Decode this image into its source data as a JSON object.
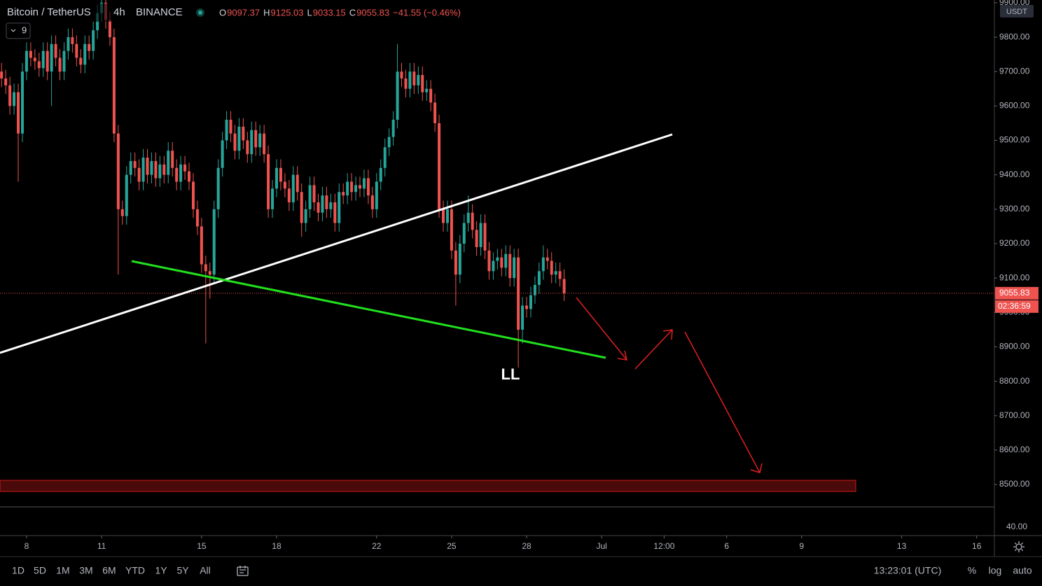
{
  "header": {
    "symbol": "Bitcoin / TetherUS",
    "interval": "4h",
    "exchange": "BINANCE",
    "ohlc_keys": [
      "O",
      "H",
      "L",
      "C"
    ],
    "change": "−41.55 (−0.46%)",
    "indicator": "9"
  },
  "chart_data": {
    "type": "candlestick",
    "currency": "USDT",
    "up_color": "#26a69a",
    "down_color": "#ef5350",
    "grid": false,
    "xlim": [
      142.5,
      1097
    ],
    "ylim": [
      8435,
      9908
    ],
    "yticks": [
      {
        "value": 8500,
        "label": "8500.00"
      },
      {
        "value": 8600,
        "label": "8600.00"
      },
      {
        "value": 8700,
        "label": "8700.00"
      },
      {
        "value": 8800,
        "label": "8800.00"
      },
      {
        "value": 8900,
        "label": "8900.00"
      },
      {
        "value": 9000,
        "label": "9000.00"
      },
      {
        "value": 9100,
        "label": "9100.00"
      },
      {
        "value": 9200,
        "label": "9200.00"
      },
      {
        "value": 9300,
        "label": "9300.00"
      },
      {
        "value": 9400,
        "label": "9400.00"
      },
      {
        "value": 9500,
        "label": "9500.00"
      },
      {
        "value": 9600,
        "label": "9600.00"
      },
      {
        "value": 9700,
        "label": "9700.00"
      },
      {
        "value": 9800,
        "label": "9800.00"
      },
      {
        "value": 9900,
        "label": "9900.00"
      }
    ],
    "xticks": [
      {
        "value": 168,
        "label": "8"
      },
      {
        "value": 240,
        "label": "11"
      },
      {
        "value": 336,
        "label": "15"
      },
      {
        "value": 408,
        "label": "18"
      },
      {
        "value": 504,
        "label": "22"
      },
      {
        "value": 576,
        "label": "25"
      },
      {
        "value": 648,
        "label": "28"
      },
      {
        "value": 720,
        "label": "Jul"
      },
      {
        "value": 780,
        "label": "12:00"
      },
      {
        "value": 840,
        "label": "6"
      },
      {
        "value": 912,
        "label": "9"
      },
      {
        "value": 1008,
        "label": "13"
      },
      {
        "value": 1080,
        "label": "16"
      }
    ],
    "countdown": "02:36:59",
    "annotation": "LL",
    "volume_axis_label": "40.00",
    "candles": [
      [
        144,
        9700,
        9725,
        9655,
        9680
      ],
      [
        148,
        9680,
        9705,
        9635,
        9660
      ],
      [
        152,
        9660,
        9685,
        9575,
        9600
      ],
      [
        156,
        9600,
        9665,
        9575,
        9640
      ],
      [
        160,
        9640,
        9665,
        9380,
        9520
      ],
      [
        164,
        9520,
        9725,
        9495,
        9700
      ],
      [
        168,
        9700,
        9785,
        9675,
        9760
      ],
      [
        172,
        9760,
        9785,
        9715,
        9740
      ],
      [
        176,
        9740,
        9765,
        9705,
        9730
      ],
      [
        180,
        9730,
        9755,
        9685,
        9710
      ],
      [
        184,
        9710,
        9785,
        9685,
        9760
      ],
      [
        188,
        9760,
        9785,
        9675,
        9700
      ],
      [
        192,
        9700,
        9805,
        9600,
        9780
      ],
      [
        196,
        9780,
        9805,
        9715,
        9740
      ],
      [
        200,
        9740,
        9765,
        9675,
        9700
      ],
      [
        204,
        9700,
        9785,
        9675,
        9760
      ],
      [
        208,
        9760,
        9825,
        9735,
        9800
      ],
      [
        212,
        9800,
        9825,
        9755,
        9780
      ],
      [
        216,
        9780,
        9805,
        9715,
        9740
      ],
      [
        220,
        9740,
        9765,
        9695,
        9720
      ],
      [
        224,
        9720,
        9805,
        9695,
        9780
      ],
      [
        228,
        9780,
        9805,
        9735,
        9760
      ],
      [
        232,
        9760,
        9845,
        9735,
        9820
      ],
      [
        236,
        9820,
        9895,
        9795,
        9870
      ],
      [
        240,
        9870,
        9930,
        9845,
        9900
      ],
      [
        244,
        9900,
        9960,
        9825,
        9850
      ],
      [
        248,
        9850,
        9875,
        9775,
        9800
      ],
      [
        252,
        9800,
        9825,
        9495,
        9520
      ],
      [
        256,
        9520,
        9545,
        9110,
        9300
      ],
      [
        260,
        9300,
        9325,
        9255,
        9280
      ],
      [
        264,
        9280,
        9425,
        9255,
        9400
      ],
      [
        268,
        9400,
        9465,
        9375,
        9440
      ],
      [
        272,
        9440,
        9465,
        9395,
        9420
      ],
      [
        276,
        9420,
        9445,
        9355,
        9380
      ],
      [
        280,
        9380,
        9475,
        9355,
        9450
      ],
      [
        284,
        9450,
        9475,
        9375,
        9400
      ],
      [
        288,
        9400,
        9465,
        9375,
        9440
      ],
      [
        292,
        9440,
        9465,
        9365,
        9390
      ],
      [
        296,
        9390,
        9455,
        9365,
        9430
      ],
      [
        300,
        9430,
        9455,
        9375,
        9400
      ],
      [
        304,
        9400,
        9495,
        9375,
        9470
      ],
      [
        308,
        9470,
        9495,
        9395,
        9420
      ],
      [
        312,
        9420,
        9445,
        9355,
        9380
      ],
      [
        316,
        9380,
        9455,
        9355,
        9430
      ],
      [
        320,
        9430,
        9455,
        9385,
        9410
      ],
      [
        324,
        9410,
        9435,
        9355,
        9380
      ],
      [
        328,
        9380,
        9405,
        9275,
        9300
      ],
      [
        332,
        9300,
        9325,
        9225,
        9250
      ],
      [
        336,
        9250,
        9275,
        9115,
        9140
      ],
      [
        340,
        9140,
        9165,
        8910,
        9120
      ],
      [
        344,
        9120,
        9145,
        9040,
        9110
      ],
      [
        348,
        9110,
        9325,
        9085,
        9300
      ],
      [
        352,
        9300,
        9445,
        9275,
        9420
      ],
      [
        356,
        9420,
        9525,
        9395,
        9500
      ],
      [
        360,
        9500,
        9585,
        9475,
        9560
      ],
      [
        364,
        9560,
        9585,
        9495,
        9520
      ],
      [
        368,
        9520,
        9545,
        9445,
        9470
      ],
      [
        372,
        9470,
        9565,
        9445,
        9540
      ],
      [
        376,
        9540,
        9565,
        9475,
        9500
      ],
      [
        380,
        9500,
        9525,
        9435,
        9460
      ],
      [
        384,
        9460,
        9555,
        9435,
        9530
      ],
      [
        388,
        9530,
        9555,
        9455,
        9480
      ],
      [
        392,
        9480,
        9545,
        9455,
        9520
      ],
      [
        396,
        9520,
        9545,
        9435,
        9460
      ],
      [
        400,
        9460,
        9485,
        9275,
        9300
      ],
      [
        404,
        9300,
        9385,
        9275,
        9360
      ],
      [
        408,
        9360,
        9445,
        9335,
        9420
      ],
      [
        412,
        9420,
        9445,
        9355,
        9380
      ],
      [
        416,
        9380,
        9405,
        9335,
        9360
      ],
      [
        420,
        9360,
        9385,
        9295,
        9320
      ],
      [
        424,
        9320,
        9425,
        9295,
        9400
      ],
      [
        428,
        9400,
        9425,
        9325,
        9350
      ],
      [
        432,
        9350,
        9375,
        9220,
        9260
      ],
      [
        436,
        9260,
        9325,
        9235,
        9300
      ],
      [
        440,
        9300,
        9395,
        9275,
        9370
      ],
      [
        444,
        9370,
        9395,
        9295,
        9320
      ],
      [
        448,
        9320,
        9345,
        9265,
        9290
      ],
      [
        452,
        9290,
        9365,
        9265,
        9340
      ],
      [
        456,
        9340,
        9365,
        9275,
        9300
      ],
      [
        460,
        9300,
        9345,
        9275,
        9320
      ],
      [
        464,
        9320,
        9345,
        9235,
        9260
      ],
      [
        468,
        9260,
        9375,
        9235,
        9350
      ],
      [
        472,
        9350,
        9375,
        9315,
        9340
      ],
      [
        476,
        9340,
        9405,
        9315,
        9380
      ],
      [
        480,
        9380,
        9405,
        9325,
        9350
      ],
      [
        484,
        9350,
        9395,
        9325,
        9370
      ],
      [
        488,
        9370,
        9395,
        9335,
        9360
      ],
      [
        492,
        9360,
        9415,
        9335,
        9390
      ],
      [
        496,
        9390,
        9415,
        9315,
        9340
      ],
      [
        500,
        9340,
        9365,
        9275,
        9300
      ],
      [
        504,
        9300,
        9405,
        9275,
        9380
      ],
      [
        508,
        9380,
        9445,
        9355,
        9420
      ],
      [
        512,
        9420,
        9505,
        9395,
        9480
      ],
      [
        516,
        9480,
        9535,
        9455,
        9510
      ],
      [
        520,
        9510,
        9585,
        9485,
        9560
      ],
      [
        524,
        9560,
        9780,
        9535,
        9700
      ],
      [
        528,
        9700,
        9725,
        9655,
        9680
      ],
      [
        532,
        9680,
        9705,
        9625,
        9650
      ],
      [
        536,
        9650,
        9725,
        9625,
        9700
      ],
      [
        540,
        9700,
        9725,
        9635,
        9660
      ],
      [
        544,
        9660,
        9715,
        9635,
        9690
      ],
      [
        548,
        9690,
        9715,
        9615,
        9640
      ],
      [
        552,
        9640,
        9675,
        9615,
        9650
      ],
      [
        556,
        9650,
        9675,
        9585,
        9610
      ],
      [
        560,
        9610,
        9635,
        9525,
        9550
      ],
      [
        564,
        9550,
        9575,
        9275,
        9300
      ],
      [
        568,
        9300,
        9325,
        9235,
        9260
      ],
      [
        572,
        9260,
        9325,
        9235,
        9300
      ],
      [
        576,
        9300,
        9325,
        9155,
        9180
      ],
      [
        580,
        9180,
        9205,
        9020,
        9110
      ],
      [
        584,
        9110,
        9225,
        9085,
        9200
      ],
      [
        588,
        9200,
        9285,
        9175,
        9260
      ],
      [
        592,
        9260,
        9340,
        9235,
        9290
      ],
      [
        596,
        9290,
        9315,
        9215,
        9240
      ],
      [
        600,
        9240,
        9265,
        9165,
        9190
      ],
      [
        604,
        9190,
        9285,
        9165,
        9260
      ],
      [
        608,
        9260,
        9285,
        9155,
        9180
      ],
      [
        612,
        9180,
        9205,
        9095,
        9120
      ],
      [
        616,
        9120,
        9175,
        9095,
        9150
      ],
      [
        620,
        9150,
        9185,
        9125,
        9160
      ],
      [
        624,
        9160,
        9185,
        9105,
        9130
      ],
      [
        628,
        9130,
        9195,
        9105,
        9170
      ],
      [
        632,
        9170,
        9195,
        9075,
        9100
      ],
      [
        636,
        9100,
        9185,
        9075,
        9160
      ],
      [
        640,
        9160,
        9185,
        8840,
        8950
      ],
      [
        644,
        8950,
        9045,
        8910,
        9020
      ],
      [
        648,
        9020,
        9045,
        8985,
        9010
      ],
      [
        652,
        9010,
        9075,
        8985,
        9050
      ],
      [
        656,
        9050,
        9105,
        9025,
        9080
      ],
      [
        660,
        9080,
        9145,
        9055,
        9120
      ],
      [
        664,
        9120,
        9195,
        9095,
        9160
      ],
      [
        668,
        9160,
        9185,
        9125,
        9150
      ],
      [
        672,
        9150,
        9175,
        9085,
        9110
      ],
      [
        676,
        9110,
        9145,
        9085,
        9120
      ],
      [
        680,
        9120,
        9145,
        9075,
        9097.37
      ],
      [
        684,
        9097.37,
        9125.03,
        9033.15,
        9055.83
      ]
    ]
  },
  "toolbar": {
    "ranges": [
      "1D",
      "5D",
      "1M",
      "3M",
      "6M",
      "YTD",
      "1Y",
      "5Y",
      "All"
    ],
    "clock": "13:23:01 (UTC)",
    "options": [
      "%",
      "log",
      "auto"
    ]
  }
}
